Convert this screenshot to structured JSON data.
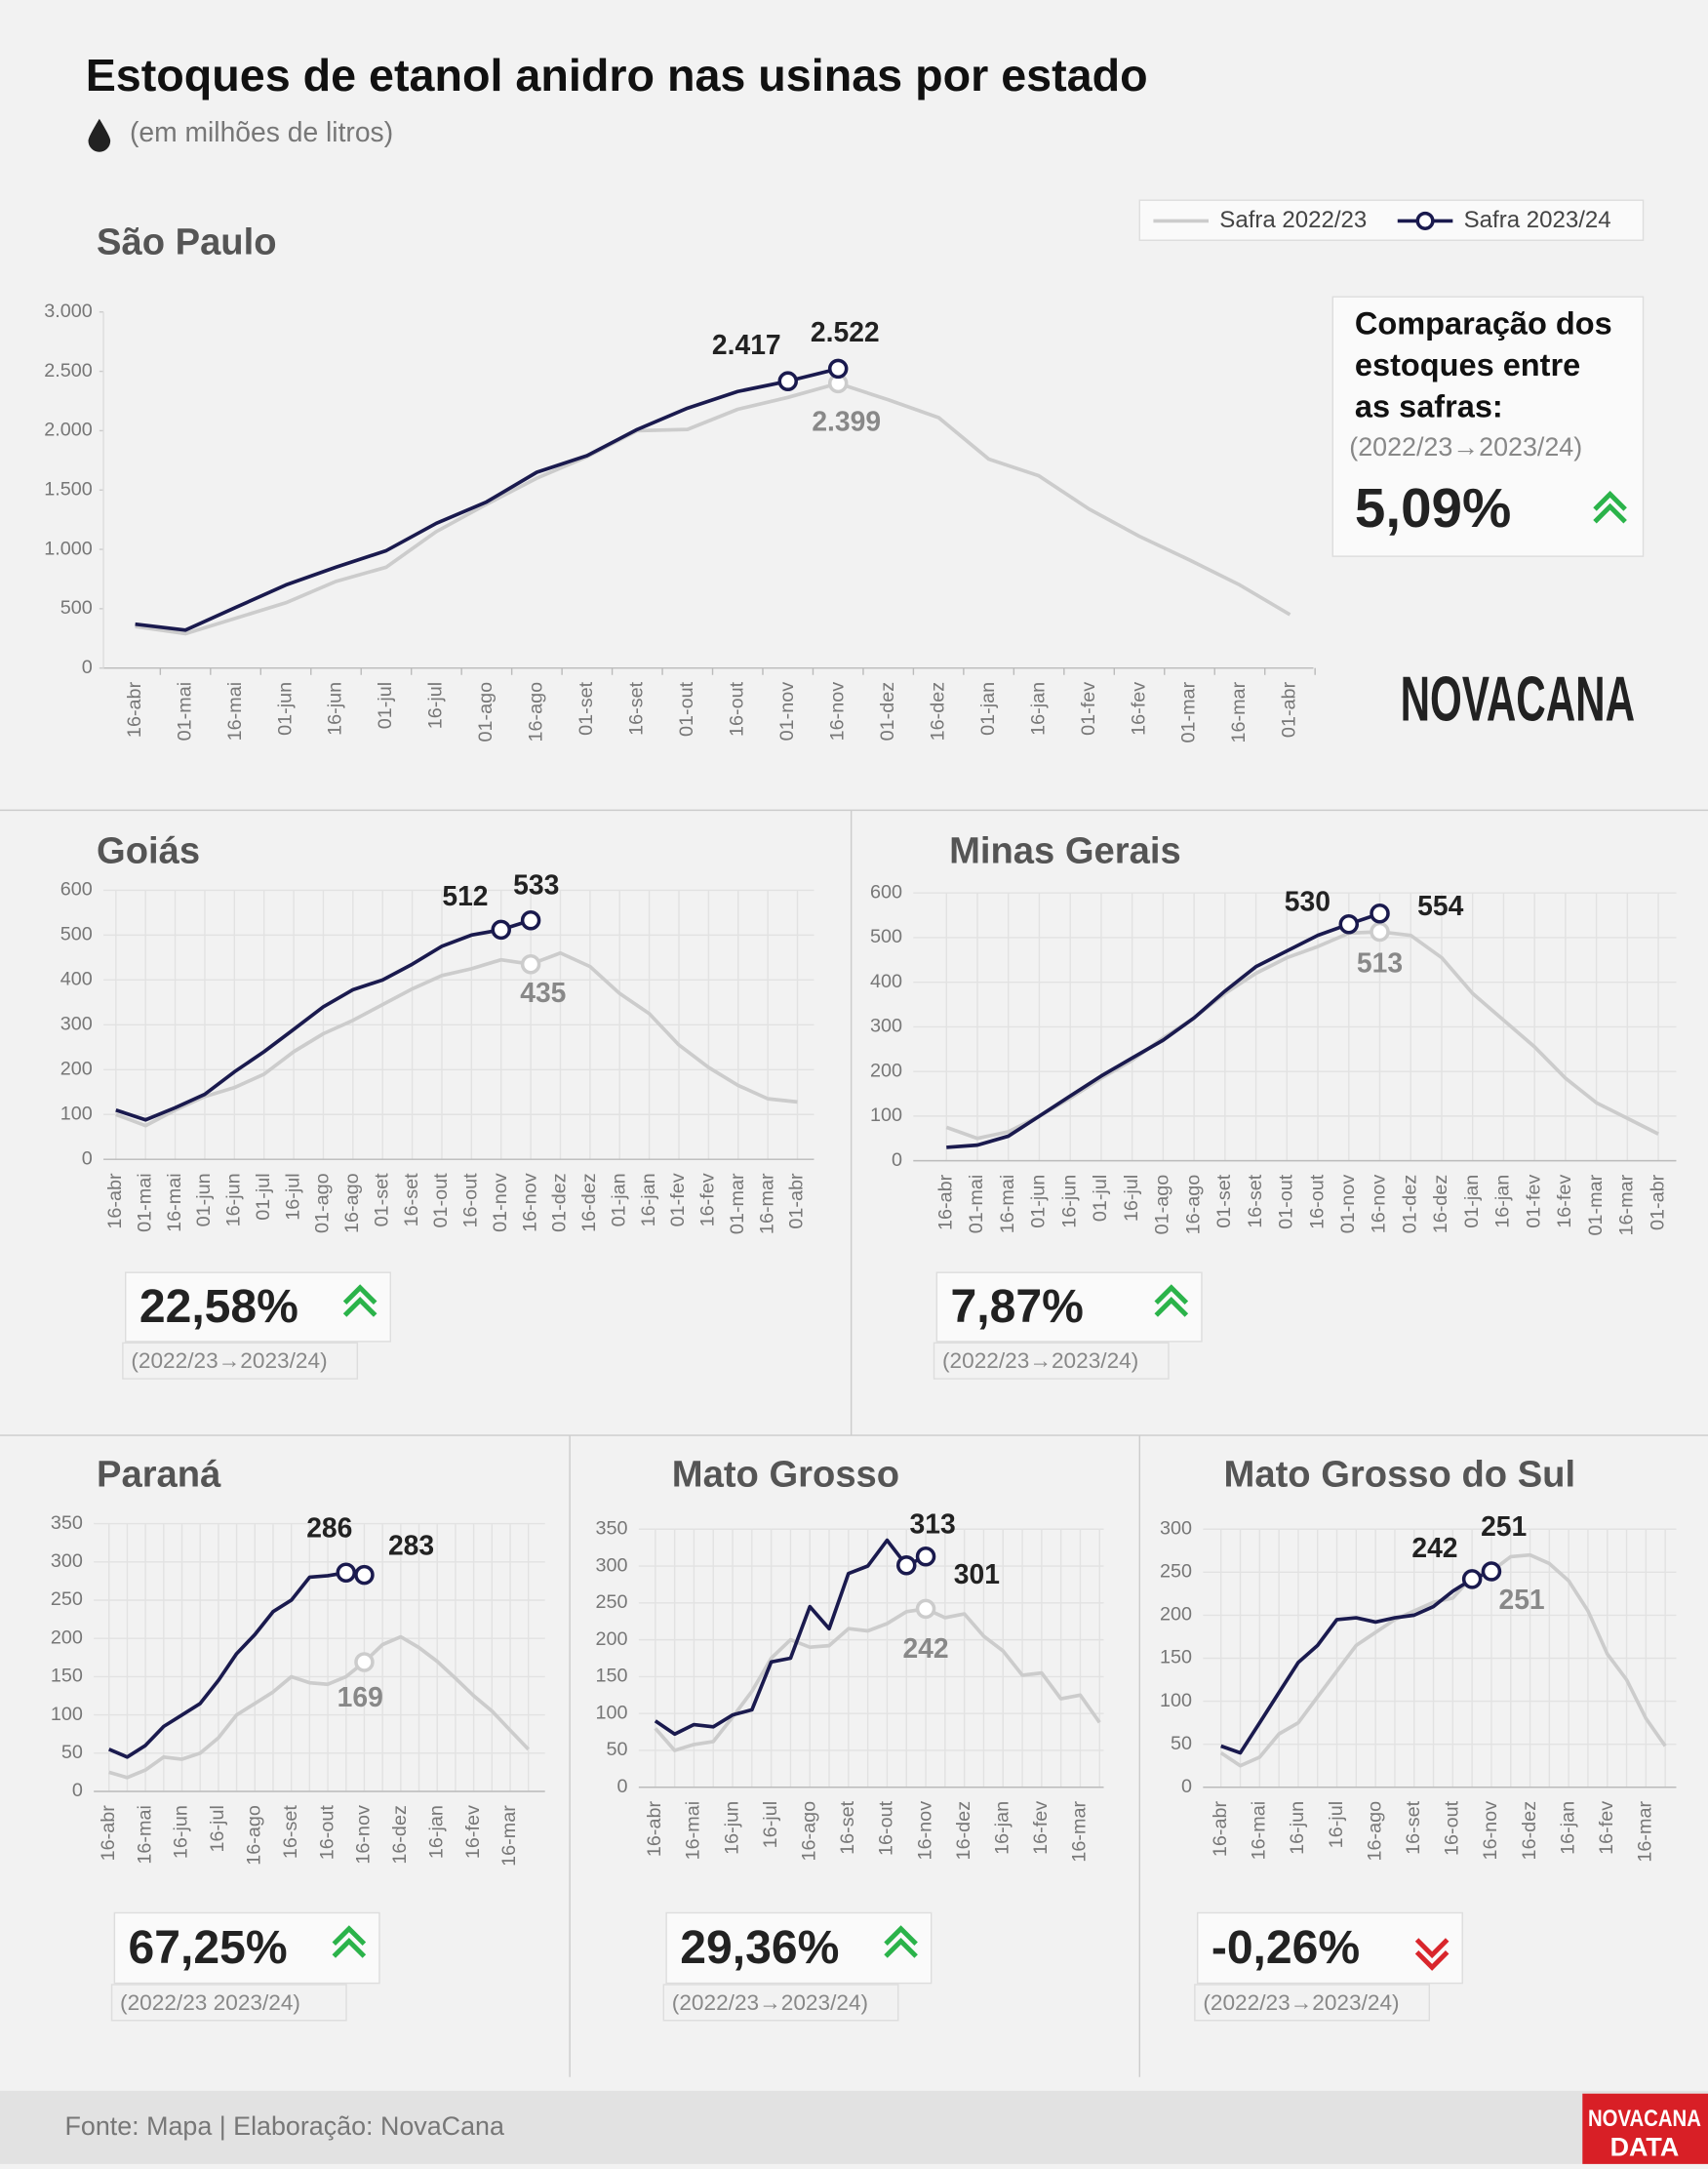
{
  "title": "Estoques de etanol anidro nas usinas por estado",
  "subtitle": "(em milhões de litros)",
  "logo": "NOVACANA",
  "source": "Fonte: Mapa | Elaboração: NovaCana",
  "footer_logo": [
    "NOVACANA",
    "DATA"
  ],
  "comparison_title": [
    "Comparação dos",
    "estoques entre",
    "as safras:"
  ],
  "chart_data": [
    {
      "type": "line",
      "title": "São Paulo",
      "categories": [
        "16-abr",
        "01-mai",
        "16-mai",
        "01-jun",
        "16-jun",
        "01-jul",
        "16-jul",
        "01-ago",
        "16-ago",
        "01-set",
        "16-set",
        "01-out",
        "16-out",
        "01-nov",
        "16-nov",
        "01-dez",
        "16-dez",
        "01-jan",
        "16-jan",
        "01-fev",
        "16-fev",
        "01-mar",
        "16-mar",
        "01-abr"
      ],
      "ylim": [
        0,
        3000
      ],
      "yticks": [
        0,
        500,
        {
          "value": 1000,
          "label": "1.000"
        },
        {
          "value": 1500,
          "label": "1.500"
        },
        {
          "value": 2000,
          "label": "2.000"
        },
        {
          "value": 2500,
          "label": "2.500"
        },
        {
          "value": 3000,
          "label": "3.000"
        }
      ],
      "grid": false,
      "series": [
        {
          "name": "Safra 2022/23",
          "color": "#cccccc",
          "values": [
            350,
            290,
            420,
            550,
            730,
            850,
            1150,
            1380,
            1600,
            1780,
            2000,
            2010,
            2180,
            2280,
            2399,
            2260,
            2110,
            1760,
            1620,
            1340,
            1110,
            910,
            700,
            450
          ],
          "value_labels": [
            null,
            null,
            null,
            null,
            null,
            null,
            null,
            null,
            null,
            null,
            null,
            null,
            null,
            null,
            "2.399",
            null,
            null,
            null,
            null,
            null,
            null,
            null,
            null,
            null
          ]
        },
        {
          "name": "Safra 2023/24",
          "color": "#1a1a4e",
          "values": [
            370,
            320,
            510,
            700,
            850,
            990,
            1220,
            1400,
            1650,
            1790,
            2010,
            2190,
            2330,
            2417,
            2522,
            null,
            null,
            null,
            null,
            null,
            null,
            null,
            null,
            null
          ],
          "value_labels": [
            null,
            null,
            null,
            null,
            null,
            null,
            null,
            null,
            null,
            null,
            null,
            null,
            null,
            "2.417",
            "2.522",
            null,
            null,
            null,
            null,
            null,
            null,
            null,
            null,
            null
          ]
        }
      ],
      "change": {
        "label": "5,09%",
        "trend": "up",
        "period": "(2022/23→2023/24)"
      }
    },
    {
      "type": "line",
      "title": "Goiás",
      "categories": [
        "16-abr",
        "01-mai",
        "16-mai",
        "01-jun",
        "16-jun",
        "01-jul",
        "16-jul",
        "01-ago",
        "16-ago",
        "01-set",
        "16-set",
        "01-out",
        "16-out",
        "01-nov",
        "16-nov",
        "01-dez",
        "16-dez",
        "01-jan",
        "16-jan",
        "01-fev",
        "16-fev",
        "01-mar",
        "16-mar",
        "01-abr"
      ],
      "ylim": [
        0,
        600
      ],
      "yticks": [
        0,
        100,
        200,
        300,
        400,
        500,
        600
      ],
      "grid": true,
      "series": [
        {
          "color": "#cccccc",
          "values": [
            100,
            75,
            110,
            140,
            160,
            190,
            240,
            280,
            310,
            345,
            380,
            410,
            425,
            445,
            435,
            460,
            430,
            370,
            325,
            255,
            205,
            165,
            135,
            128
          ],
          "value_labels": [
            null,
            null,
            null,
            null,
            null,
            null,
            null,
            null,
            null,
            null,
            null,
            null,
            null,
            null,
            "435",
            null,
            null,
            null,
            null,
            null,
            null,
            null,
            null,
            null
          ]
        },
        {
          "color": "#1a1a4e",
          "values": [
            110,
            88,
            115,
            145,
            195,
            240,
            290,
            340,
            378,
            400,
            435,
            475,
            500,
            512,
            533,
            null,
            null,
            null,
            null,
            null,
            null,
            null,
            null,
            null
          ],
          "value_labels": [
            null,
            null,
            null,
            null,
            null,
            null,
            null,
            null,
            null,
            null,
            null,
            null,
            null,
            "512",
            "533",
            null,
            null,
            null,
            null,
            null,
            null,
            null,
            null,
            null
          ]
        }
      ],
      "change": {
        "label": "22,58%",
        "trend": "up",
        "period": "(2022/23→2023/24)"
      }
    },
    {
      "type": "line",
      "title": "Minas Gerais",
      "categories": [
        "16-abr",
        "01-mai",
        "16-mai",
        "01-jun",
        "16-jun",
        "01-jul",
        "16-jul",
        "01-ago",
        "16-ago",
        "01-set",
        "16-set",
        "01-out",
        "16-out",
        "01-nov",
        "16-nov",
        "01-dez",
        "16-dez",
        "01-jan",
        "16-jan",
        "01-fev",
        "16-fev",
        "01-mar",
        "16-mar",
        "01-abr"
      ],
      "ylim": [
        0,
        600
      ],
      "yticks": [
        0,
        100,
        200,
        300,
        400,
        500,
        600
      ],
      "grid": true,
      "series": [
        {
          "color": "#cccccc",
          "values": [
            75,
            50,
            65,
            100,
            140,
            185,
            225,
            275,
            320,
            375,
            420,
            455,
            480,
            510,
            513,
            505,
            455,
            375,
            315,
            255,
            185,
            130,
            95,
            60
          ],
          "value_labels": [
            null,
            null,
            null,
            null,
            null,
            null,
            null,
            null,
            null,
            null,
            null,
            null,
            null,
            null,
            "513",
            null,
            null,
            null,
            null,
            null,
            null,
            null,
            null,
            null
          ]
        },
        {
          "color": "#1a1a4e",
          "values": [
            30,
            35,
            55,
            100,
            145,
            190,
            230,
            270,
            320,
            380,
            435,
            470,
            505,
            530,
            554,
            null,
            null,
            null,
            null,
            null,
            null,
            null,
            null,
            null
          ],
          "value_labels": [
            null,
            null,
            null,
            null,
            null,
            null,
            null,
            null,
            null,
            null,
            null,
            null,
            null,
            "530",
            "554",
            null,
            null,
            null,
            null,
            null,
            null,
            null,
            null,
            null
          ]
        }
      ],
      "change": {
        "label": "7,87%",
        "trend": "up",
        "period": "(2022/23→2023/24)"
      }
    },
    {
      "type": "line",
      "title": "Paraná",
      "categories": [
        "16-abr",
        null,
        "16-mai",
        null,
        "16-jun",
        null,
        "16-jul",
        null,
        "16-ago",
        null,
        "16-set",
        null,
        "16-out",
        null,
        "16-nov",
        null,
        "16-dez",
        null,
        "16-jan",
        null,
        "16-fev",
        null,
        "16-mar",
        null
      ],
      "ylim": [
        0,
        350
      ],
      "yticks": [
        0,
        50,
        100,
        150,
        200,
        250,
        300,
        350
      ],
      "grid": true,
      "series": [
        {
          "color": "#cccccc",
          "values": [
            25,
            18,
            28,
            45,
            42,
            50,
            70,
            100,
            115,
            130,
            150,
            142,
            140,
            150,
            169,
            192,
            202,
            188,
            170,
            148,
            125,
            105,
            80,
            55
          ],
          "value_labels": [
            null,
            null,
            null,
            null,
            null,
            null,
            null,
            null,
            null,
            null,
            null,
            null,
            null,
            null,
            "169",
            null,
            null,
            null,
            null,
            null,
            null,
            null,
            null,
            null
          ]
        },
        {
          "color": "#1a1a4e",
          "values": [
            55,
            45,
            60,
            85,
            100,
            115,
            145,
            180,
            205,
            235,
            250,
            280,
            282,
            286,
            283,
            null,
            null,
            null,
            null,
            null,
            null,
            null,
            null,
            null
          ],
          "value_labels": [
            null,
            null,
            null,
            null,
            null,
            null,
            null,
            null,
            null,
            null,
            null,
            null,
            null,
            "286",
            "283",
            null,
            null,
            null,
            null,
            null,
            null,
            null,
            null,
            null
          ]
        }
      ],
      "change": {
        "label": "67,25%",
        "trend": "up",
        "period": "(2022/23    2023/24)"
      }
    },
    {
      "type": "line",
      "title": "Mato Grosso",
      "categories": [
        "16-abr",
        null,
        "16-mai",
        null,
        "16-jun",
        null,
        "16-jul",
        null,
        "16-ago",
        null,
        "16-set",
        null,
        "16-out",
        null,
        "16-nov",
        null,
        "16-dez",
        null,
        "16-jan",
        null,
        "16-fev",
        null,
        "16-mar",
        null
      ],
      "ylim": [
        0,
        350
      ],
      "yticks": [
        0,
        50,
        100,
        150,
        200,
        250,
        300,
        350
      ],
      "grid": true,
      "series": [
        {
          "color": "#cccccc",
          "values": [
            80,
            50,
            58,
            62,
            95,
            130,
            175,
            200,
            190,
            192,
            215,
            212,
            222,
            238,
            242,
            230,
            235,
            205,
            185,
            152,
            155,
            120,
            125,
            88
          ],
          "value_labels": [
            null,
            null,
            null,
            null,
            null,
            null,
            null,
            null,
            null,
            null,
            null,
            null,
            null,
            null,
            "242",
            null,
            null,
            null,
            null,
            null,
            null,
            null,
            null,
            null
          ]
        },
        {
          "color": "#1a1a4e",
          "values": [
            90,
            72,
            85,
            82,
            98,
            105,
            170,
            175,
            245,
            215,
            290,
            300,
            335,
            301,
            313,
            null,
            null,
            null,
            null,
            null,
            null,
            null,
            null,
            null
          ],
          "value_labels": [
            null,
            null,
            null,
            null,
            null,
            null,
            null,
            null,
            null,
            null,
            null,
            null,
            null,
            "301",
            "313",
            null,
            null,
            null,
            null,
            null,
            null,
            null,
            null,
            null
          ]
        }
      ],
      "change": {
        "label": "29,36%",
        "trend": "up",
        "period": "(2022/23→2023/24)"
      }
    },
    {
      "type": "line",
      "title": "Mato Grosso do Sul",
      "categories": [
        "16-abr",
        null,
        "16-mai",
        null,
        "16-jun",
        null,
        "16-jul",
        null,
        "16-ago",
        null,
        "16-set",
        null,
        "16-out",
        null,
        "16-nov",
        null,
        "16-dez",
        null,
        "16-jan",
        null,
        "16-fev",
        null,
        "16-mar",
        null
      ],
      "ylim": [
        0,
        300
      ],
      "yticks": [
        0,
        50,
        100,
        150,
        200,
        250,
        300
      ],
      "grid": true,
      "series": [
        {
          "color": "#cccccc",
          "values": [
            40,
            25,
            35,
            62,
            75,
            105,
            135,
            165,
            180,
            195,
            205,
            215,
            220,
            245,
            251,
            268,
            270,
            260,
            240,
            205,
            155,
            125,
            80,
            48
          ],
          "value_labels": [
            null,
            null,
            null,
            null,
            null,
            null,
            null,
            null,
            null,
            null,
            null,
            null,
            null,
            null,
            "251",
            null,
            null,
            null,
            null,
            null,
            null,
            null,
            null,
            null
          ]
        },
        {
          "color": "#1a1a4e",
          "values": [
            48,
            40,
            75,
            110,
            145,
            165,
            195,
            197,
            192,
            197,
            200,
            210,
            228,
            242,
            251,
            null,
            null,
            null,
            null,
            null,
            null,
            null,
            null,
            null
          ],
          "value_labels": [
            null,
            null,
            null,
            null,
            null,
            null,
            null,
            null,
            null,
            null,
            null,
            null,
            null,
            "242",
            "251",
            null,
            null,
            null,
            null,
            null,
            null,
            null,
            null,
            null
          ]
        }
      ],
      "change": {
        "label": "-0,26%",
        "trend": "down",
        "period": "(2022/23→2023/24)"
      }
    }
  ]
}
